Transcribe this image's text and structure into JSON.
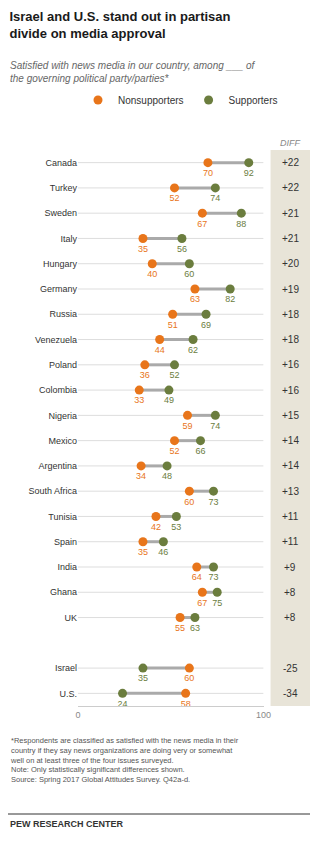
{
  "chart_data": {
    "type": "dot",
    "title": "Israel and U.S. stand out in partisan\ndivide on media approval",
    "subtitle": "Satisfied with news media in our country, among ___ of\nthe governing political party/parties*",
    "categories": [
      "Canada",
      "Turkey",
      "Sweden",
      "Italy",
      "Hungary",
      "Germany",
      "Russia",
      "Venezuela",
      "Poland",
      "Colombia",
      "Nigeria",
      "Mexico",
      "Argentina",
      "South Africa",
      "Tunisia",
      "Spain",
      "India",
      "Ghana",
      "UK",
      null,
      "Israel",
      "U.S."
    ],
    "series": [
      {
        "name": "Nonsupporters",
        "color": "#E8751A",
        "values": [
          70,
          52,
          67,
          35,
          40,
          63,
          51,
          44,
          36,
          33,
          59,
          52,
          34,
          60,
          42,
          35,
          64,
          67,
          55,
          null,
          60,
          58
        ]
      },
      {
        "name": "Supporters",
        "color": "#6B7D3E",
        "values": [
          92,
          74,
          88,
          56,
          60,
          82,
          69,
          62,
          52,
          49,
          74,
          66,
          48,
          73,
          53,
          46,
          73,
          75,
          63,
          null,
          35,
          24
        ]
      }
    ],
    "orientation": "horizontal",
    "xlim": [
      0,
      100
    ],
    "xticks": [
      0,
      100
    ],
    "grid": true,
    "legend": "top",
    "data_labels": true,
    "diffs": {
      "title": "DIFF",
      "color": "#E8E4D8",
      "values": [
        22,
        22,
        21,
        21,
        20,
        19,
        18,
        18,
        16,
        16,
        15,
        14,
        14,
        13,
        11,
        11,
        9,
        8,
        8,
        null,
        -25,
        -34
      ],
      "value_labels": [
        "+22",
        "+22",
        "+21",
        "+21",
        "+20",
        "+19",
        "+18",
        "+18",
        "+16",
        "+16",
        "+15",
        "+14",
        "+14",
        "+13",
        "+11",
        "+11",
        "+9",
        "+8",
        "+8",
        null,
        "-25",
        "-34"
      ]
    },
    "notes": [
      "*Respondents are classified as satisfied with the news media in their",
      "country if they say news organizations are doing very or somewhat",
      "well on at least three of the four issues surveyed.",
      "Note: Only statistically significant differences shown.",
      "Source: Spring 2017 Global Attitudes Survey. Q42a-d."
    ],
    "credit": "PEW RESEARCH CENTER"
  }
}
